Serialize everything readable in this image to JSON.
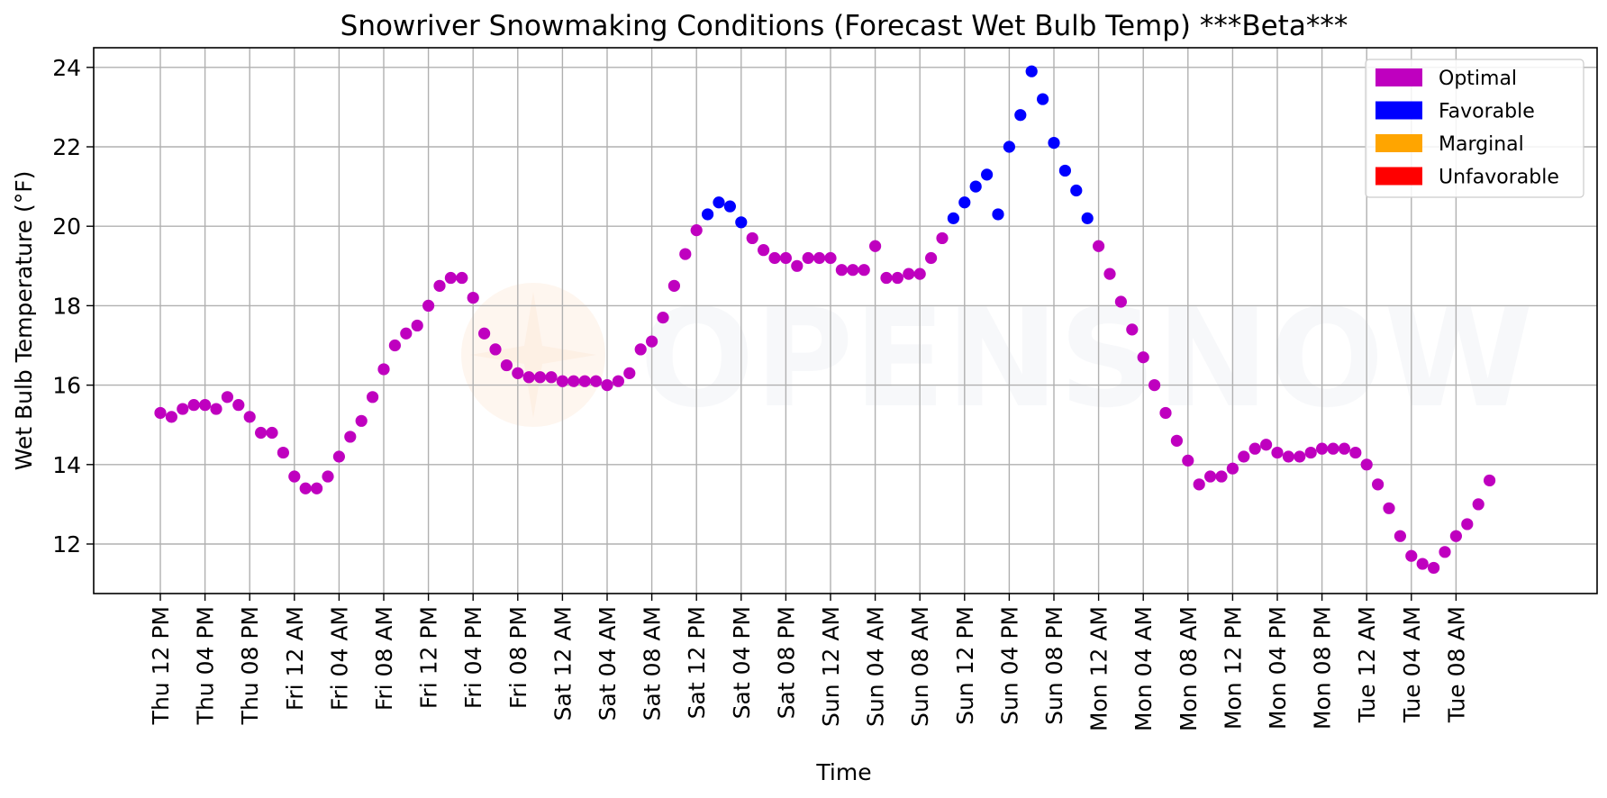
{
  "chart_data": {
    "type": "scatter",
    "title": "Snowriver Snowmaking Conditions (Forecast Wet Bulb Temp) ***Beta***",
    "xlabel": "Time",
    "ylabel": "Wet Bulb Temperature (°F)",
    "ylim": [
      10.8,
      24.6
    ],
    "yticks": [
      12,
      14,
      16,
      18,
      20,
      22,
      24
    ],
    "x_unit": "hours since Thu 12 PM",
    "xlim": [
      -6,
      125
    ],
    "xticks": [
      {
        "x": 0,
        "label": "Thu 12 PM"
      },
      {
        "x": 4,
        "label": "Thu 04 PM"
      },
      {
        "x": 8,
        "label": "Thu 08 PM"
      },
      {
        "x": 12,
        "label": "Fri 12 AM"
      },
      {
        "x": 16,
        "label": "Fri 04 AM"
      },
      {
        "x": 20,
        "label": "Fri 08 AM"
      },
      {
        "x": 24,
        "label": "Fri 12 PM"
      },
      {
        "x": 28,
        "label": "Fri 04 PM"
      },
      {
        "x": 32,
        "label": "Fri 08 PM"
      },
      {
        "x": 36,
        "label": "Sat 12 AM"
      },
      {
        "x": 40,
        "label": "Sat 04 AM"
      },
      {
        "x": 44,
        "label": "Sat 08 AM"
      },
      {
        "x": 48,
        "label": "Sat 12 PM"
      },
      {
        "x": 52,
        "label": "Sat 04 PM"
      },
      {
        "x": 56,
        "label": "Sat 08 PM"
      },
      {
        "x": 60,
        "label": "Sun 12 AM"
      },
      {
        "x": 64,
        "label": "Sun 04 AM"
      },
      {
        "x": 68,
        "label": "Sun 08 AM"
      },
      {
        "x": 72,
        "label": "Sun 12 PM"
      },
      {
        "x": 76,
        "label": "Sun 04 PM"
      },
      {
        "x": 80,
        "label": "Sun 08 PM"
      },
      {
        "x": 84,
        "label": "Mon 12 AM"
      },
      {
        "x": 88,
        "label": "Mon 04 AM"
      },
      {
        "x": 92,
        "label": "Mon 08 AM"
      },
      {
        "x": 96,
        "label": "Mon 12 PM"
      },
      {
        "x": 100,
        "label": "Mon 04 PM"
      },
      {
        "x": 104,
        "label": "Mon 08 PM"
      },
      {
        "x": 108,
        "label": "Tue 12 AM"
      },
      {
        "x": 112,
        "label": "Tue 04 AM"
      },
      {
        "x": 116,
        "label": "Tue 08 AM"
      }
    ],
    "grid": true,
    "legend_position": "top-right",
    "legend": [
      {
        "label": "Optimal",
        "color": "#bf00bf"
      },
      {
        "label": "Favorable",
        "color": "#0000ff"
      },
      {
        "label": "Marginal",
        "color": "#ffa500"
      },
      {
        "label": "Unfavorable",
        "color": "#ff0000"
      }
    ],
    "series": [
      {
        "name": "Optimal",
        "color": "#bf00bf",
        "points": [
          [
            0,
            15.3
          ],
          [
            1,
            15.2
          ],
          [
            2,
            15.4
          ],
          [
            3,
            15.5
          ],
          [
            4,
            15.5
          ],
          [
            5,
            15.4
          ],
          [
            6,
            15.7
          ],
          [
            7,
            15.5
          ],
          [
            8,
            15.2
          ],
          [
            9,
            14.8
          ],
          [
            10,
            14.8
          ],
          [
            11,
            14.3
          ],
          [
            12,
            13.7
          ],
          [
            13,
            13.4
          ],
          [
            14,
            13.4
          ],
          [
            15,
            13.7
          ],
          [
            16,
            14.2
          ],
          [
            17,
            14.7
          ],
          [
            18,
            15.1
          ],
          [
            19,
            15.7
          ],
          [
            20,
            16.4
          ],
          [
            21,
            17.0
          ],
          [
            22,
            17.3
          ],
          [
            23,
            17.5
          ],
          [
            24,
            18.0
          ],
          [
            25,
            18.5
          ],
          [
            26,
            18.7
          ],
          [
            27,
            18.7
          ],
          [
            28,
            18.2
          ],
          [
            29,
            17.3
          ],
          [
            30,
            16.9
          ],
          [
            31,
            16.5
          ],
          [
            32,
            16.3
          ],
          [
            33,
            16.2
          ],
          [
            34,
            16.2
          ],
          [
            35,
            16.2
          ],
          [
            36,
            16.1
          ],
          [
            37,
            16.1
          ],
          [
            38,
            16.1
          ],
          [
            39,
            16.1
          ],
          [
            40,
            16.0
          ],
          [
            41,
            16.1
          ],
          [
            42,
            16.3
          ],
          [
            43,
            16.9
          ],
          [
            44,
            17.1
          ],
          [
            45,
            17.7
          ],
          [
            46,
            18.5
          ],
          [
            47,
            19.3
          ],
          [
            48,
            19.9
          ],
          [
            53,
            19.7
          ],
          [
            54,
            19.4
          ],
          [
            55,
            19.2
          ],
          [
            56,
            19.2
          ],
          [
            57,
            19.0
          ],
          [
            58,
            19.2
          ],
          [
            59,
            19.2
          ],
          [
            60,
            19.2
          ],
          [
            61,
            18.9
          ],
          [
            62,
            18.9
          ],
          [
            63,
            18.9
          ],
          [
            64,
            19.5
          ],
          [
            65,
            18.7
          ],
          [
            66,
            18.7
          ],
          [
            67,
            18.8
          ],
          [
            68,
            18.8
          ],
          [
            69,
            19.2
          ],
          [
            70,
            19.7
          ],
          [
            84,
            19.5
          ],
          [
            85,
            18.8
          ],
          [
            86,
            18.1
          ],
          [
            87,
            17.4
          ],
          [
            88,
            16.7
          ],
          [
            89,
            16.0
          ],
          [
            90,
            15.3
          ],
          [
            91,
            14.6
          ],
          [
            92,
            14.1
          ],
          [
            93,
            13.5
          ],
          [
            94,
            13.7
          ],
          [
            95,
            13.7
          ],
          [
            96,
            13.9
          ],
          [
            97,
            14.2
          ],
          [
            98,
            14.4
          ],
          [
            99,
            14.5
          ],
          [
            100,
            14.3
          ],
          [
            101,
            14.2
          ],
          [
            102,
            14.2
          ],
          [
            103,
            14.3
          ],
          [
            104,
            14.4
          ],
          [
            105,
            14.4
          ],
          [
            106,
            14.4
          ],
          [
            107,
            14.3
          ],
          [
            108,
            14.0
          ],
          [
            109,
            13.5
          ],
          [
            110,
            12.9
          ],
          [
            111,
            12.2
          ],
          [
            112,
            11.7
          ],
          [
            113,
            11.5
          ],
          [
            114,
            11.4
          ],
          [
            115,
            11.8
          ],
          [
            116,
            12.2
          ],
          [
            117,
            12.5
          ],
          [
            118,
            13.0
          ],
          [
            119,
            13.6
          ]
        ]
      },
      {
        "name": "Favorable",
        "color": "#0000ff",
        "points": [
          [
            49,
            20.3
          ],
          [
            50,
            20.6
          ],
          [
            51,
            20.5
          ],
          [
            52,
            20.1
          ],
          [
            71,
            20.2
          ],
          [
            72,
            20.6
          ],
          [
            73,
            21.0
          ],
          [
            74,
            21.3
          ],
          [
            75,
            20.3
          ],
          [
            76,
            22.0
          ],
          [
            77,
            22.8
          ],
          [
            78,
            23.9
          ],
          [
            79,
            23.2
          ],
          [
            80,
            22.1
          ],
          [
            81,
            21.4
          ],
          [
            82,
            20.9
          ],
          [
            83,
            20.2
          ]
        ]
      }
    ]
  }
}
